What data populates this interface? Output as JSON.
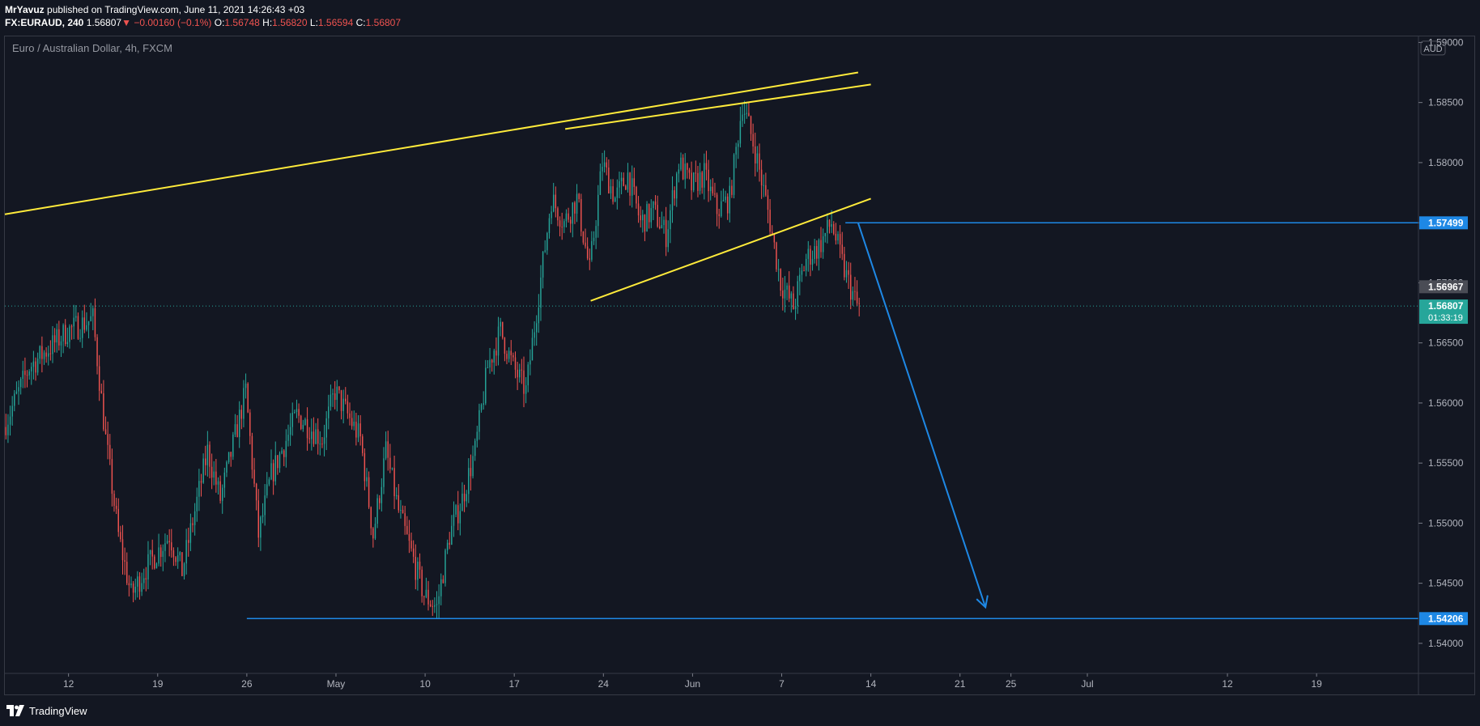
{
  "header": {
    "author": "MrYavuz",
    "published": "published on TradingView.com, June 11, 2021 14:26:43 +03",
    "symbol": "FX:EURAUD, 240",
    "price": "1.56807",
    "change": "−0.00160 (−0.1%)",
    "o_label": "O:",
    "o_value": "1.56748",
    "h_label": "H:",
    "h_value": "1.56820",
    "l_label": "L:",
    "l_value": "1.56594",
    "c_label": "C:",
    "c_value": "1.56807"
  },
  "footer": {
    "brand": "TradingView"
  },
  "colors": {
    "background": "#131722",
    "up": "#26a69a",
    "down": "#ef5350",
    "trendline": "#ffeb3b",
    "level": "#1e88e5",
    "grid": "#363a45",
    "text": "#b2b5be"
  },
  "chart_data": {
    "type": "candlestick",
    "title": "Euro / Australian Dollar, 4h, FXCM",
    "currency_label": "AUD",
    "ylim": [
      1.5375,
      1.5905
    ],
    "yticks": [
      "1.54000",
      "1.54500",
      "1.55000",
      "1.55500",
      "1.56000",
      "1.56500",
      "1.57000",
      "1.57500",
      "1.58000",
      "1.58500",
      "1.59000"
    ],
    "xticks": [
      {
        "label": "12",
        "date": "2021-04-12"
      },
      {
        "label": "19",
        "date": "2021-04-19"
      },
      {
        "label": "26",
        "date": "2021-04-26"
      },
      {
        "label": "May",
        "date": "2021-05-03"
      },
      {
        "label": "10",
        "date": "2021-05-10"
      },
      {
        "label": "17",
        "date": "2021-05-17"
      },
      {
        "label": "24",
        "date": "2021-05-24"
      },
      {
        "label": "Jun",
        "date": "2021-05-31"
      },
      {
        "label": "7",
        "date": "2021-06-07"
      },
      {
        "label": "14",
        "date": "2021-06-14"
      },
      {
        "label": "21",
        "date": "2021-06-21"
      },
      {
        "label": "25",
        "date": "2021-06-25"
      },
      {
        "label": "Jul",
        "date": "2021-07-01"
      },
      {
        "label": "12",
        "date": "2021-07-12"
      },
      {
        "label": "19",
        "date": "2021-07-19"
      }
    ],
    "x_range": [
      "2021-04-07",
      "2021-07-27"
    ],
    "price_path": [
      [
        "2021-04-07",
        1.558
      ],
      [
        "2021-04-09",
        1.563
      ],
      [
        "2021-04-12",
        1.566
      ],
      [
        "2021-04-14",
        1.567
      ],
      [
        "2021-04-15",
        1.557
      ],
      [
        "2021-04-16",
        1.549
      ],
      [
        "2021-04-17",
        1.544
      ],
      [
        "2021-04-18",
        1.546
      ],
      [
        "2021-04-20",
        1.549
      ],
      [
        "2021-04-21",
        1.546
      ],
      [
        "2021-04-23",
        1.556
      ],
      [
        "2021-04-24",
        1.552
      ],
      [
        "2021-04-26",
        1.561
      ],
      [
        "2021-04-27",
        1.549
      ],
      [
        "2021-04-28",
        1.554
      ],
      [
        "2021-04-30",
        1.559
      ],
      [
        "2021-05-02",
        1.557
      ],
      [
        "2021-05-03",
        1.561
      ],
      [
        "2021-05-05",
        1.557
      ],
      [
        "2021-05-06",
        1.549
      ],
      [
        "2021-05-07",
        1.556
      ],
      [
        "2021-05-08",
        1.551
      ],
      [
        "2021-05-10",
        1.544
      ],
      [
        "2021-05-11",
        1.543
      ],
      [
        "2021-05-12",
        1.549
      ],
      [
        "2021-05-13",
        1.552
      ],
      [
        "2021-05-14",
        1.556
      ],
      [
        "2021-05-15",
        1.563
      ],
      [
        "2021-05-16",
        1.566
      ],
      [
        "2021-05-17",
        1.563
      ],
      [
        "2021-05-18",
        1.561
      ],
      [
        "2021-05-19",
        1.569
      ],
      [
        "2021-05-20",
        1.577
      ],
      [
        "2021-05-21",
        1.575
      ],
      [
        "2021-05-22",
        1.577
      ],
      [
        "2021-05-23",
        1.571
      ],
      [
        "2021-05-24",
        1.58
      ],
      [
        "2021-05-25",
        1.577
      ],
      [
        "2021-05-26",
        1.579
      ],
      [
        "2021-05-27",
        1.575
      ],
      [
        "2021-05-28",
        1.576
      ],
      [
        "2021-05-29",
        1.574
      ],
      [
        "2021-05-30",
        1.58
      ],
      [
        "2021-05-31",
        1.578
      ],
      [
        "2021-06-01",
        1.579
      ],
      [
        "2021-06-02",
        1.576
      ],
      [
        "2021-06-03",
        1.577
      ],
      [
        "2021-06-04",
        1.585
      ],
      [
        "2021-06-05",
        1.581
      ],
      [
        "2021-06-06",
        1.576
      ],
      [
        "2021-06-07",
        1.57
      ],
      [
        "2021-06-08",
        1.568
      ],
      [
        "2021-06-09",
        1.572
      ],
      [
        "2021-06-10",
        1.573
      ],
      [
        "2021-06-11",
        1.575
      ],
      [
        "2021-06-12",
        1.571
      ],
      [
        "2021-06-13",
        1.5681
      ]
    ],
    "last_price": "1.56807",
    "countdown": "01:33:19",
    "price_labels": [
      {
        "value": "1.57499",
        "price": 1.57499
      },
      {
        "value": "1.56967",
        "price": 1.56967
      },
      {
        "value": "1.54206",
        "price": 1.54206
      }
    ],
    "trendlines": [
      {
        "from": [
          "2021-04-07",
          1.5757
        ],
        "to": [
          "2021-06-13",
          1.5875
        ]
      },
      {
        "from": [
          "2021-05-21",
          1.5828
        ],
        "to": [
          "2021-06-14",
          1.5865
        ]
      },
      {
        "from": [
          "2021-05-23",
          1.5685
        ],
        "to": [
          "2021-06-14",
          1.577
        ]
      }
    ],
    "levels": [
      {
        "price": 1.57499,
        "from": "2021-06-12"
      },
      {
        "price": 1.54206,
        "from": "2021-04-26"
      }
    ],
    "arrow": {
      "from": [
        "2021-06-13",
        1.57499
      ],
      "to": [
        "2021-06-23",
        1.543
      ]
    }
  }
}
